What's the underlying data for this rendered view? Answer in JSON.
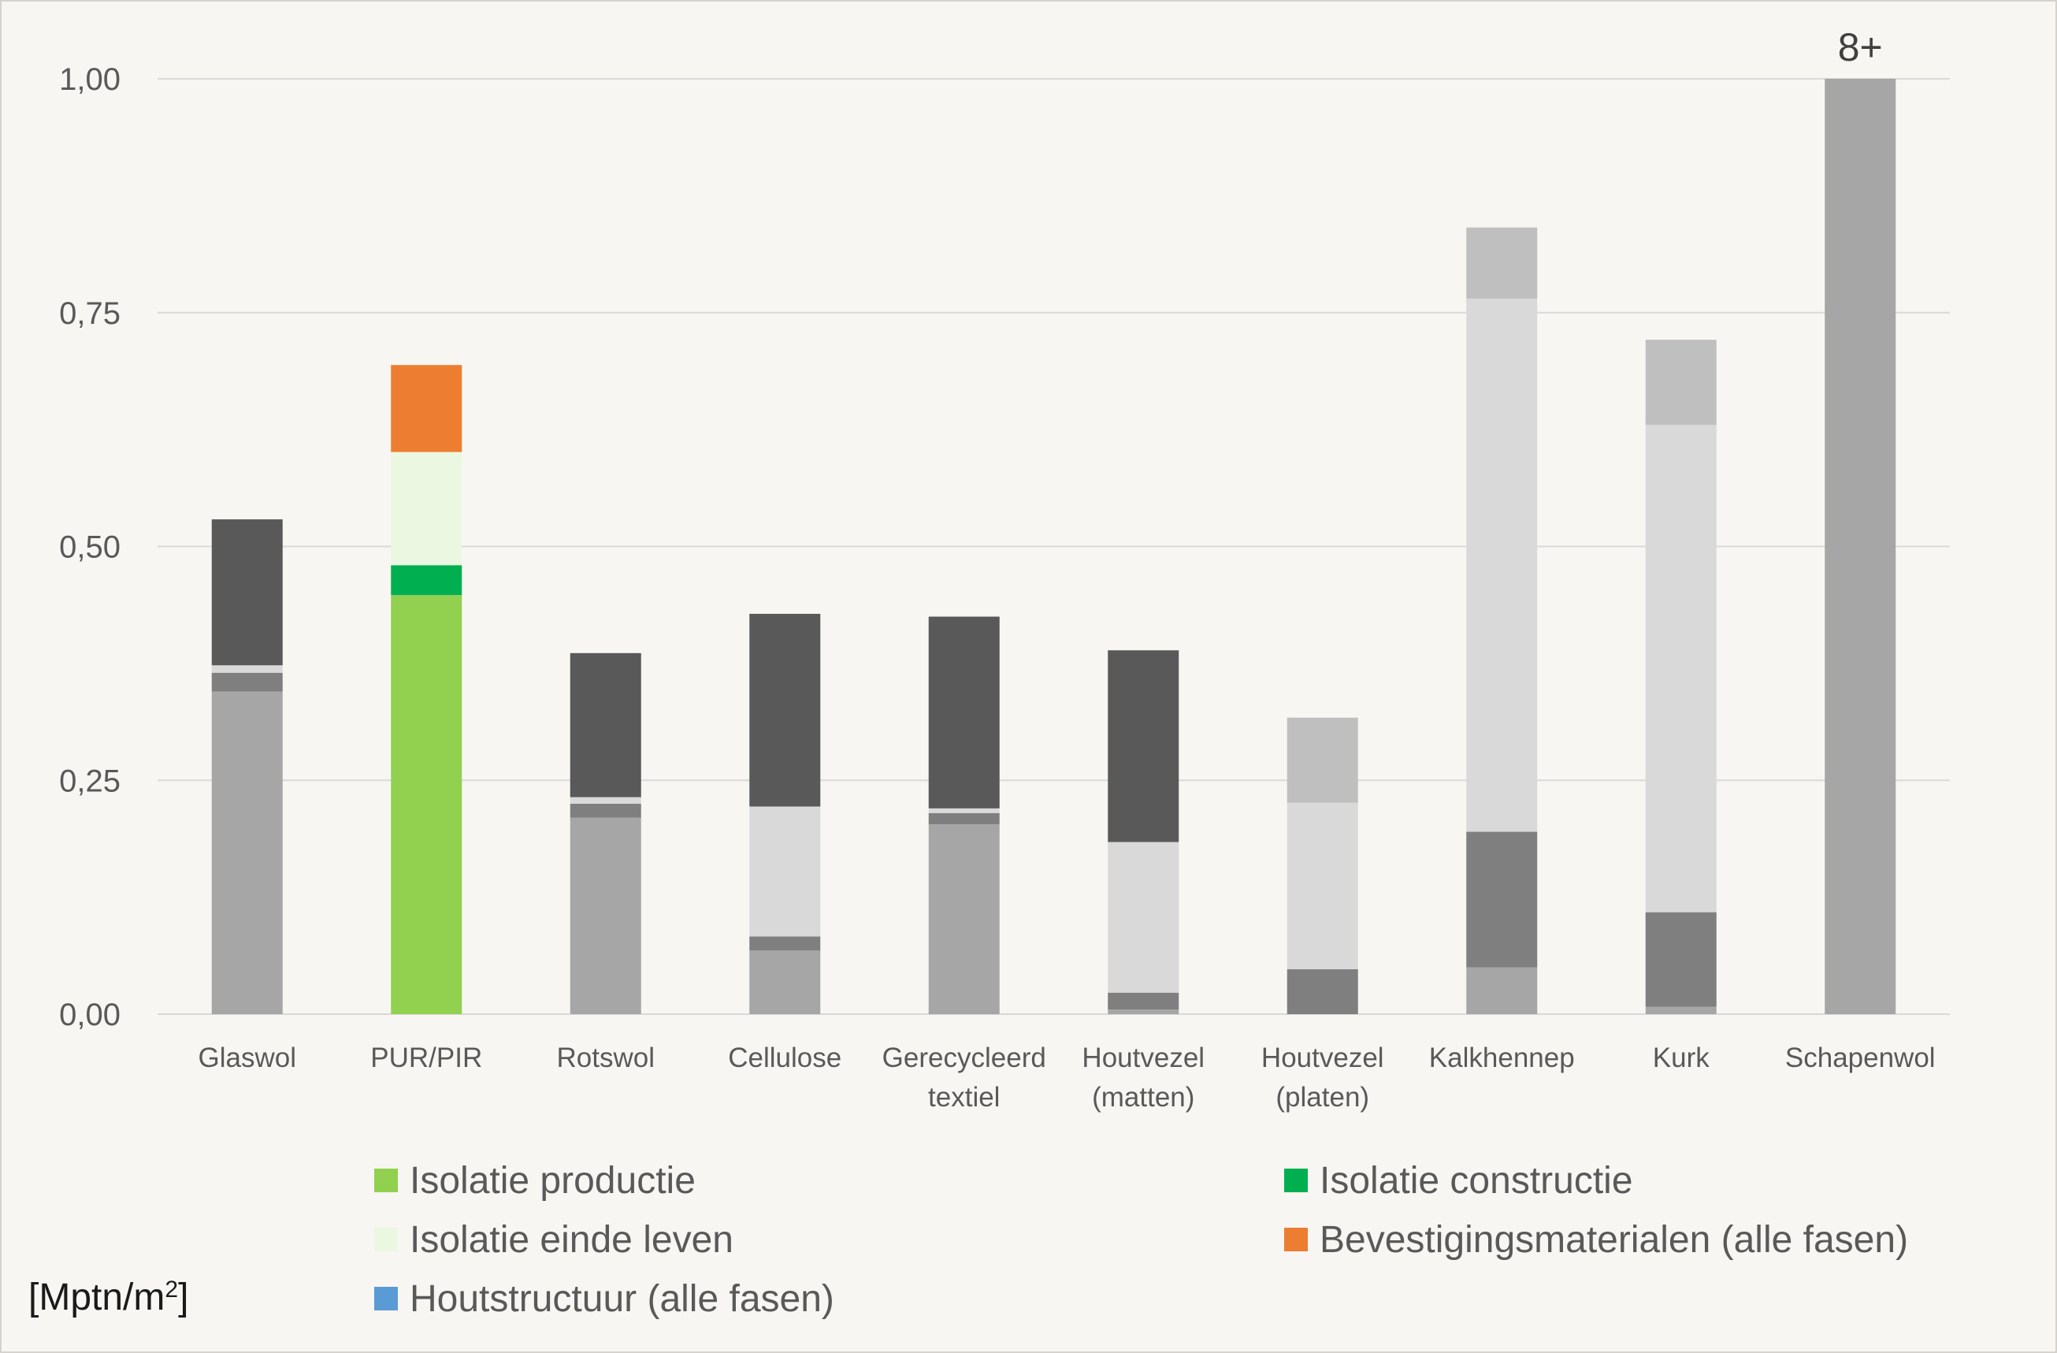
{
  "chart_data": {
    "type": "bar",
    "stacked": true,
    "unit_label": "[Mptn/m",
    "unit_superscript": "2",
    "unit_suffix": "]",
    "ylim": [
      0,
      1.0
    ],
    "yticks": [
      "0,00",
      "0,25",
      "0,50",
      "0,75",
      "1,00"
    ],
    "ytick_values": [
      0,
      0.25,
      0.5,
      0.75,
      1.0
    ],
    "grid": true,
    "legend_position": "bottom",
    "overflow_label": "8+",
    "overflow_category": "Schapenwol",
    "categories": [
      [
        "Glaswol"
      ],
      [
        "PUR/PIR"
      ],
      [
        "Rotswol"
      ],
      [
        "Cellulose"
      ],
      [
        "Gerecycleerd",
        "textiel"
      ],
      [
        "Houtvezel",
        "(matten)"
      ],
      [
        "Houtvezel",
        "(platen)"
      ],
      [
        "Kalkhennep"
      ],
      [
        "Kurk"
      ],
      [
        "Schapenwol"
      ]
    ],
    "stacks": [
      [
        {
          "value": 0.345,
          "color": "#a6a6a6"
        },
        {
          "value": 0.02,
          "color": "#7f7f7f"
        },
        {
          "value": 0.008,
          "color": "#d9d9d9"
        },
        {
          "value": 0.156,
          "color": "#595959"
        }
      ],
      [
        {
          "value": 0.448,
          "color": "#92d050"
        },
        {
          "value": 0.032,
          "color": "#00b050"
        },
        {
          "value": 0.121,
          "color": "#ebf7e1"
        },
        {
          "value": 0.093,
          "color": "#ed7d31"
        }
      ],
      [
        {
          "value": 0.21,
          "color": "#a6a6a6"
        },
        {
          "value": 0.015,
          "color": "#7f7f7f"
        },
        {
          "value": 0.007,
          "color": "#d9d9d9"
        },
        {
          "value": 0.154,
          "color": "#595959"
        }
      ],
      [
        {
          "value": 0.068,
          "color": "#a6a6a6"
        },
        {
          "value": 0.015,
          "color": "#7f7f7f"
        },
        {
          "value": 0.139,
          "color": "#d9d9d9"
        },
        {
          "value": 0.206,
          "color": "#595959"
        }
      ],
      [
        {
          "value": 0.203,
          "color": "#a6a6a6"
        },
        {
          "value": 0.012,
          "color": "#7f7f7f"
        },
        {
          "value": 0.005,
          "color": "#d9d9d9"
        },
        {
          "value": 0.205,
          "color": "#595959"
        }
      ],
      [
        {
          "value": 0.005,
          "color": "#a6a6a6"
        },
        {
          "value": 0.018,
          "color": "#7f7f7f"
        },
        {
          "value": 0.161,
          "color": "#d9d9d9"
        },
        {
          "value": 0.205,
          "color": "#595959"
        }
      ],
      [
        {
          "value": 0.048,
          "color": "#7f7f7f"
        },
        {
          "value": 0.178,
          "color": "#d9d9d9"
        },
        {
          "value": 0.091,
          "color": "#bfbfbf"
        }
      ],
      [
        {
          "value": 0.05,
          "color": "#a6a6a6"
        },
        {
          "value": 0.145,
          "color": "#7f7f7f"
        },
        {
          "value": 0.57,
          "color": "#d9d9d9"
        },
        {
          "value": 0.076,
          "color": "#bfbfbf"
        }
      ],
      [
        {
          "value": 0.008,
          "color": "#a6a6a6"
        },
        {
          "value": 0.101,
          "color": "#7f7f7f"
        },
        {
          "value": 0.521,
          "color": "#d9d9d9"
        },
        {
          "value": 0.091,
          "color": "#bfbfbf"
        }
      ],
      [
        {
          "value": 1.0,
          "color": "#a6a6a6"
        }
      ]
    ],
    "legend": [
      {
        "label": "Isolatie productie",
        "color": "#92d050"
      },
      {
        "label": "Isolatie constructie",
        "color": "#00b050"
      },
      {
        "label": "Isolatie einde leven",
        "color": "#ebf7e1"
      },
      {
        "label": "Bevestigingsmaterialen (alle fasen)",
        "color": "#ed7d31"
      },
      {
        "label": "Houtstructuur (alle fasen)",
        "color": "#5b9bd5"
      }
    ],
    "colors": {
      "background": "#f8f6f2",
      "gridline": "#d9d9d9",
      "axis_text": "#595959"
    }
  }
}
